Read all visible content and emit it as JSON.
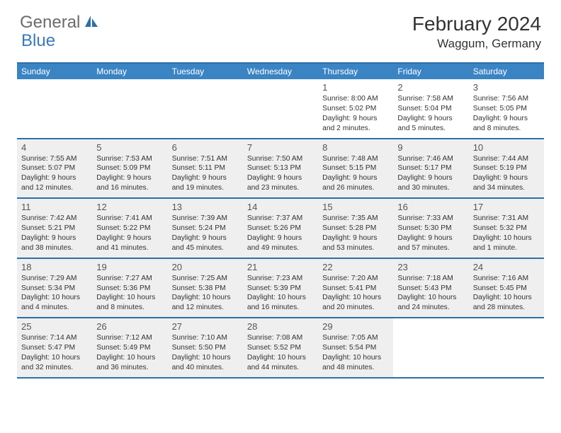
{
  "logo": {
    "text1": "General",
    "text2": "Blue"
  },
  "title": "February 2024",
  "location": "Waggum, Germany",
  "colors": {
    "header_bg": "#3a84c4",
    "border": "#2d6fa8",
    "shade": "#efefef",
    "logo_gray": "#6b6b6b",
    "logo_blue": "#3a7ab8"
  },
  "dow": [
    "Sunday",
    "Monday",
    "Tuesday",
    "Wednesday",
    "Thursday",
    "Friday",
    "Saturday"
  ],
  "weeks": [
    [
      {
        "n": "",
        "shaded": false
      },
      {
        "n": "",
        "shaded": false
      },
      {
        "n": "",
        "shaded": false
      },
      {
        "n": "",
        "shaded": false
      },
      {
        "n": "1",
        "shaded": false,
        "sr": "8:00 AM",
        "ss": "5:02 PM",
        "dl": "9 hours and 2 minutes."
      },
      {
        "n": "2",
        "shaded": false,
        "sr": "7:58 AM",
        "ss": "5:04 PM",
        "dl": "9 hours and 5 minutes."
      },
      {
        "n": "3",
        "shaded": false,
        "sr": "7:56 AM",
        "ss": "5:05 PM",
        "dl": "9 hours and 8 minutes."
      }
    ],
    [
      {
        "n": "4",
        "shaded": true,
        "sr": "7:55 AM",
        "ss": "5:07 PM",
        "dl": "9 hours and 12 minutes."
      },
      {
        "n": "5",
        "shaded": true,
        "sr": "7:53 AM",
        "ss": "5:09 PM",
        "dl": "9 hours and 16 minutes."
      },
      {
        "n": "6",
        "shaded": true,
        "sr": "7:51 AM",
        "ss": "5:11 PM",
        "dl": "9 hours and 19 minutes."
      },
      {
        "n": "7",
        "shaded": true,
        "sr": "7:50 AM",
        "ss": "5:13 PM",
        "dl": "9 hours and 23 minutes."
      },
      {
        "n": "8",
        "shaded": true,
        "sr": "7:48 AM",
        "ss": "5:15 PM",
        "dl": "9 hours and 26 minutes."
      },
      {
        "n": "9",
        "shaded": true,
        "sr": "7:46 AM",
        "ss": "5:17 PM",
        "dl": "9 hours and 30 minutes."
      },
      {
        "n": "10",
        "shaded": true,
        "sr": "7:44 AM",
        "ss": "5:19 PM",
        "dl": "9 hours and 34 minutes."
      }
    ],
    [
      {
        "n": "11",
        "shaded": true,
        "sr": "7:42 AM",
        "ss": "5:21 PM",
        "dl": "9 hours and 38 minutes."
      },
      {
        "n": "12",
        "shaded": true,
        "sr": "7:41 AM",
        "ss": "5:22 PM",
        "dl": "9 hours and 41 minutes."
      },
      {
        "n": "13",
        "shaded": true,
        "sr": "7:39 AM",
        "ss": "5:24 PM",
        "dl": "9 hours and 45 minutes."
      },
      {
        "n": "14",
        "shaded": true,
        "sr": "7:37 AM",
        "ss": "5:26 PM",
        "dl": "9 hours and 49 minutes."
      },
      {
        "n": "15",
        "shaded": true,
        "sr": "7:35 AM",
        "ss": "5:28 PM",
        "dl": "9 hours and 53 minutes."
      },
      {
        "n": "16",
        "shaded": true,
        "sr": "7:33 AM",
        "ss": "5:30 PM",
        "dl": "9 hours and 57 minutes."
      },
      {
        "n": "17",
        "shaded": true,
        "sr": "7:31 AM",
        "ss": "5:32 PM",
        "dl": "10 hours and 1 minute."
      }
    ],
    [
      {
        "n": "18",
        "shaded": true,
        "sr": "7:29 AM",
        "ss": "5:34 PM",
        "dl": "10 hours and 4 minutes."
      },
      {
        "n": "19",
        "shaded": true,
        "sr": "7:27 AM",
        "ss": "5:36 PM",
        "dl": "10 hours and 8 minutes."
      },
      {
        "n": "20",
        "shaded": true,
        "sr": "7:25 AM",
        "ss": "5:38 PM",
        "dl": "10 hours and 12 minutes."
      },
      {
        "n": "21",
        "shaded": true,
        "sr": "7:23 AM",
        "ss": "5:39 PM",
        "dl": "10 hours and 16 minutes."
      },
      {
        "n": "22",
        "shaded": true,
        "sr": "7:20 AM",
        "ss": "5:41 PM",
        "dl": "10 hours and 20 minutes."
      },
      {
        "n": "23",
        "shaded": true,
        "sr": "7:18 AM",
        "ss": "5:43 PM",
        "dl": "10 hours and 24 minutes."
      },
      {
        "n": "24",
        "shaded": true,
        "sr": "7:16 AM",
        "ss": "5:45 PM",
        "dl": "10 hours and 28 minutes."
      }
    ],
    [
      {
        "n": "25",
        "shaded": true,
        "sr": "7:14 AM",
        "ss": "5:47 PM",
        "dl": "10 hours and 32 minutes."
      },
      {
        "n": "26",
        "shaded": true,
        "sr": "7:12 AM",
        "ss": "5:49 PM",
        "dl": "10 hours and 36 minutes."
      },
      {
        "n": "27",
        "shaded": true,
        "sr": "7:10 AM",
        "ss": "5:50 PM",
        "dl": "10 hours and 40 minutes."
      },
      {
        "n": "28",
        "shaded": true,
        "sr": "7:08 AM",
        "ss": "5:52 PM",
        "dl": "10 hours and 44 minutes."
      },
      {
        "n": "29",
        "shaded": true,
        "sr": "7:05 AM",
        "ss": "5:54 PM",
        "dl": "10 hours and 48 minutes."
      },
      {
        "n": "",
        "shaded": false
      },
      {
        "n": "",
        "shaded": false
      }
    ]
  ],
  "labels": {
    "sunrise": "Sunrise: ",
    "sunset": "Sunset: ",
    "daylight": "Daylight: "
  }
}
